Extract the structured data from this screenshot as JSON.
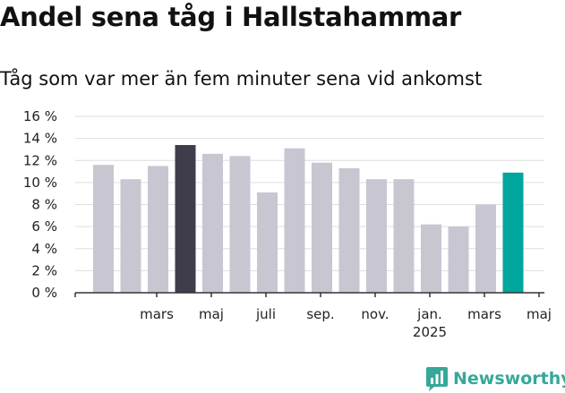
{
  "chart_data": {
    "type": "bar",
    "title": "Andel sena tåg i Hallstahammar",
    "subtitle": "Tåg som var mer än fem minuter sena vid ankomst",
    "values": [
      11.6,
      10.3,
      11.5,
      13.4,
      12.6,
      12.4,
      9.1,
      13.1,
      11.8,
      11.3,
      10.3,
      10.3,
      6.2,
      6.0,
      8.0,
      10.9
    ],
    "x_tick_labels": [
      {
        "label": "mars",
        "bar": 1
      },
      {
        "label": "maj",
        "bar": 3
      },
      {
        "label": "juli",
        "bar": 5
      },
      {
        "label": "sep.",
        "bar": 7
      },
      {
        "label": "nov.",
        "bar": 9
      },
      {
        "label": "jan.",
        "bar": 11,
        "sublabel": "2025"
      },
      {
        "label": "mars",
        "bar": 13
      },
      {
        "label": "maj",
        "bar": 15
      }
    ],
    "y_ticks": [
      "0 %",
      "2 %",
      "4 %",
      "6 %",
      "8 %",
      "10 %",
      "12 %",
      "14 %",
      "16 %"
    ],
    "ylim": [
      0,
      16
    ],
    "grid": true,
    "colors": {
      "default": "#c8c6d1",
      "highlight_dark": "#3f3d4b",
      "highlight_teal": "#00a69c"
    },
    "highlighted": {
      "3": "#3f3d4b",
      "15": "#00a69c"
    }
  },
  "logo": {
    "text": "Newsworthy",
    "icon": "newsworthy-logo-icon"
  }
}
